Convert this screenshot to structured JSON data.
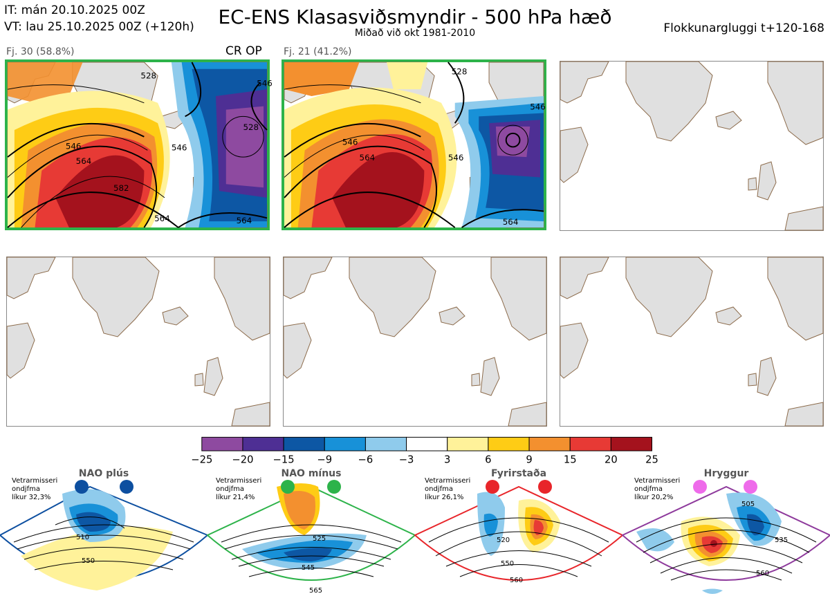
{
  "header": {
    "it": "IT: mán 20.10.2025 00Z",
    "vt": "VT: lau 25.10.2025 00Z  (+120h)",
    "title": "EC-ENS Klasasviðsmyndir - 500 hPa hæð",
    "subtitle": "Miðað við okt 1981-2010",
    "window": "Flokkunargluggi t+120-168"
  },
  "panels": [
    {
      "label": "Fj. 30 (58.8%)",
      "tag": "CR OP",
      "contours": [
        "528",
        "546",
        "546",
        "564",
        "582",
        "564",
        "528",
        "546",
        "564"
      ]
    },
    {
      "label": "Fj. 21 (41.2%)",
      "tag": "",
      "contours": [
        "528",
        "546",
        "564",
        "546",
        "546",
        "564"
      ]
    }
  ],
  "colors": {
    "selected_border": "#2db34a",
    "land": "#e0e0e0",
    "coast": "#8b6a4a"
  },
  "chart_data": {
    "type": "heatmap",
    "title": "EC-ENS Klasasviðsmyndir - 500 hPa hæð",
    "colorbar": {
      "ticks": [
        "−25",
        "−20",
        "−15",
        "−9",
        "−6",
        "−3",
        "3",
        "6",
        "9",
        "15",
        "20",
        "25"
      ],
      "colors": [
        "#8e4aa0",
        "#4e2f94",
        "#0d57a4",
        "#1891d8",
        "#8fcbec",
        "#ffffff",
        "#fff29a",
        "#fecc15",
        "#f3902f",
        "#e73a35",
        "#a4121d"
      ]
    }
  },
  "regimes": [
    {
      "name": "NAO plús",
      "note": [
        "Vetrarmisseri",
        "ondjfma",
        "líkur 32,3%"
      ],
      "labels": [
        "510",
        "550"
      ],
      "color": "#0d4fa0"
    },
    {
      "name": "NAO mínus",
      "note": [
        "Vetrarmisseri",
        "ondjfma",
        "líkur 21,4%"
      ],
      "labels": [
        "525",
        "545",
        "565"
      ],
      "color": "#2db34a"
    },
    {
      "name": "Fyrirstaða",
      "note": [
        "Vetrarmisseri",
        "ondjfma",
        "líkur 26,1%"
      ],
      "labels": [
        "520",
        "550",
        "560"
      ],
      "color": "#e8252a"
    },
    {
      "name": "Hryggur",
      "note": [
        "Vetrarmisseri",
        "ondjfma",
        "líkur 20,2%"
      ],
      "labels": [
        "505",
        "535",
        "560"
      ],
      "color": "#8e3a9c"
    }
  ]
}
